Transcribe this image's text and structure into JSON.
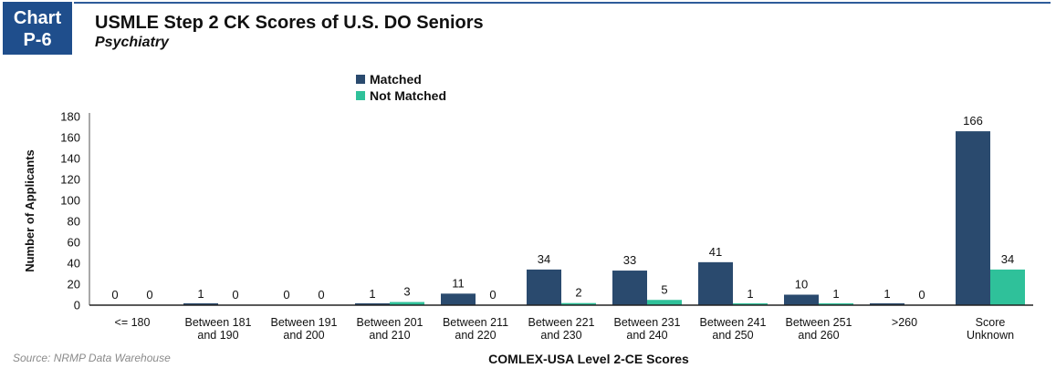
{
  "header": {
    "badge_line1": "Chart",
    "badge_line2": "P-6",
    "title": "USMLE Step 2 CK Scores of U.S. DO Seniors",
    "subtitle": "Psychiatry"
  },
  "footer": {
    "source": "Source: NRMP Data Warehouse"
  },
  "chart_data": {
    "type": "bar",
    "title": "USMLE Step 2 CK Scores of U.S. DO Seniors",
    "subtitle": "Psychiatry",
    "xlabel": "COMLEX-USA Level 2-CE Scores",
    "ylabel": "Number of Applicants",
    "ylim": [
      0,
      180
    ],
    "yticks": [
      0,
      20,
      40,
      60,
      80,
      100,
      120,
      140,
      160,
      180
    ],
    "grid": false,
    "legend_position": "top-center",
    "categories": [
      [
        "<= 180"
      ],
      [
        "Between 181",
        "and 190"
      ],
      [
        "Between 191",
        "and 200"
      ],
      [
        "Between 201",
        "and 210"
      ],
      [
        "Between 211",
        "and 220"
      ],
      [
        "Between 221",
        "and 230"
      ],
      [
        "Between 231",
        "and 240"
      ],
      [
        "Between 241",
        "and 250"
      ],
      [
        "Between 251",
        "and 260"
      ],
      [
        ">260"
      ],
      [
        "Score",
        "Unknown"
      ]
    ],
    "series": [
      {
        "name": "Matched",
        "color": "#2a4a6e",
        "values": [
          0,
          1,
          0,
          1,
          11,
          34,
          33,
          41,
          10,
          1,
          166
        ]
      },
      {
        "name": "Not Matched",
        "color": "#2fc19a",
        "values": [
          0,
          0,
          0,
          3,
          0,
          2,
          5,
          1,
          1,
          0,
          34
        ]
      }
    ]
  }
}
